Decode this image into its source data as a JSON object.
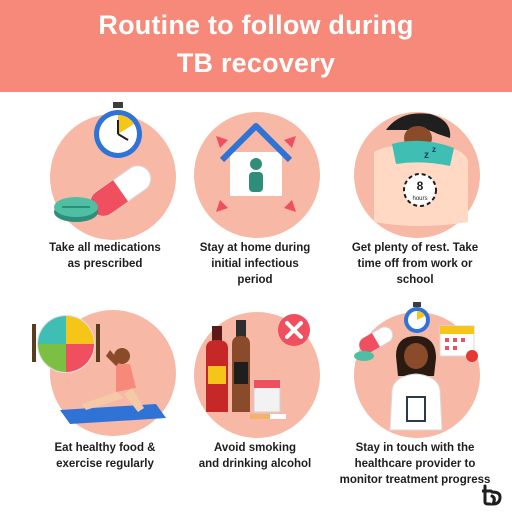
{
  "header": {
    "title_line1": "Routine to follow during",
    "title_line2": "TB recovery",
    "bg_color": "#f7897a"
  },
  "items": [
    {
      "icon": "medication-icon",
      "caption_lines": [
        "Take all medications",
        "as prescribed"
      ]
    },
    {
      "icon": "house-icon",
      "caption_lines": [
        "Stay at home during",
        "initial infectious",
        "period"
      ]
    },
    {
      "icon": "sleeping-person-icon",
      "clock_text": [
        "8",
        "hours"
      ],
      "caption_lines": [
        "Get plenty of rest. Take",
        "time off from work or",
        "school"
      ]
    },
    {
      "icon": "healthy-food-exercise-icon",
      "caption_lines": [
        "Eat healthy food &",
        "exercise regularly"
      ]
    },
    {
      "icon": "no-smoking-drinking-icon",
      "caption_lines": [
        "Avoid smoking",
        "and drinking alcohol"
      ]
    },
    {
      "icon": "doctor-icon",
      "caption_lines": [
        "Stay in touch with the",
        "healthcare provider to",
        "monitor treatment progress"
      ]
    }
  ],
  "colors": {
    "circle": "#f7b8a6",
    "accent": "#f7897a",
    "text": "#1e1e1e"
  },
  "logo": {
    "icon": "brand-logo-icon"
  }
}
